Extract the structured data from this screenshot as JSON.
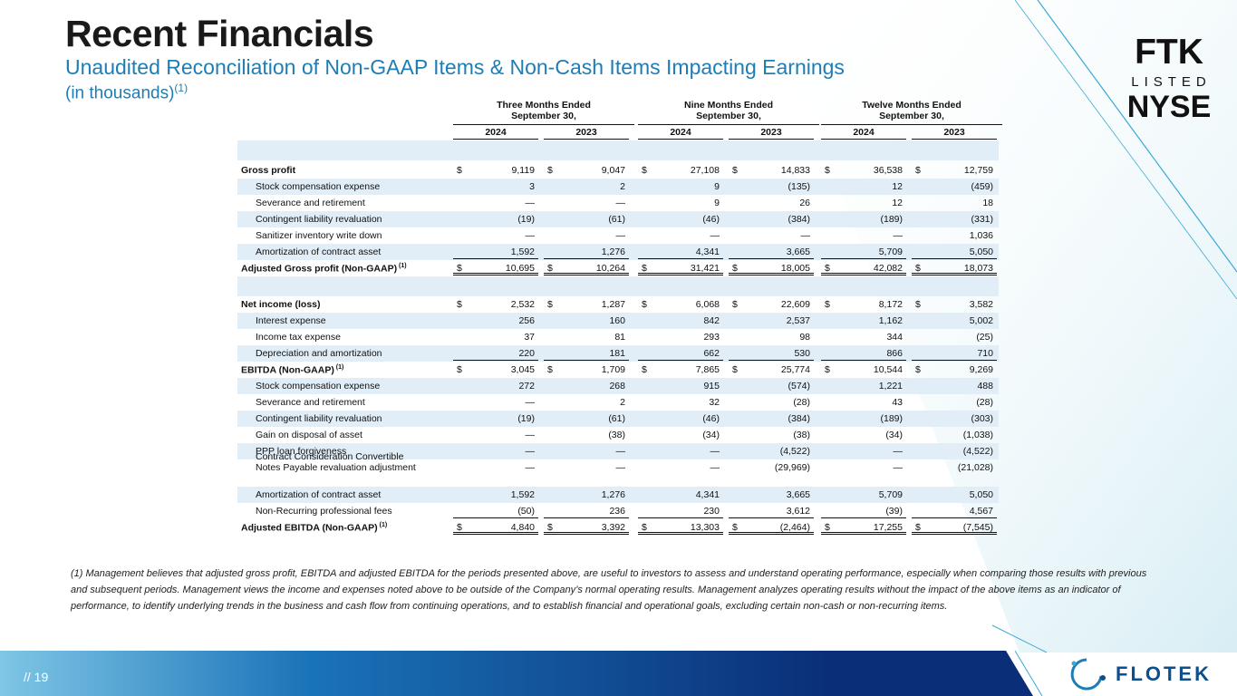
{
  "slide": {
    "title": "Recent Financials",
    "subtitle": "Unaudited Reconciliation of Non-GAAP Items & Non-Cash Items Impacting Earnings",
    "units": "(in thousands)",
    "units_footnote_ref": "(1)",
    "page_number": "// 19"
  },
  "badge": {
    "line1": "FTK",
    "line2": "LISTED",
    "line3": "NYSE"
  },
  "brand": {
    "name": "FLOTEK",
    "icon": "flotek-ring-icon"
  },
  "colors": {
    "title": "#1a1a1a",
    "subtitle": "#1f7db6",
    "row_shade": "#e1eef8",
    "bar_left": "#7fc6e6",
    "bar_right": "#0a2f78"
  },
  "table": {
    "periods": [
      {
        "label": "Three Months Ended September 30,",
        "years": [
          "2024",
          "2023"
        ]
      },
      {
        "label": "Nine Months Ended September 30,",
        "years": [
          "2024",
          "2023"
        ]
      },
      {
        "label": "Twelve Months Ended September 30,",
        "years": [
          "2024",
          "2023"
        ]
      }
    ],
    "rows": [
      {
        "label": "Gross profit",
        "values": [
          "9,119",
          "9,047",
          "27,108",
          "14,833",
          "36,538",
          "12,759"
        ]
      },
      {
        "label": "Stock compensation expense",
        "values": [
          "3",
          "2",
          "9",
          "(135)",
          "12",
          "(459)"
        ]
      },
      {
        "label": "Severance and retirement",
        "values": [
          "—",
          "—",
          "9",
          "26",
          "12",
          "18"
        ]
      },
      {
        "label": "Contingent liability revaluation",
        "values": [
          "(19)",
          "(61)",
          "(46)",
          "(384)",
          "(189)",
          "(331)"
        ]
      },
      {
        "label": "Sanitizer inventory write down",
        "values": [
          "—",
          "—",
          "—",
          "—",
          "—",
          "1,036"
        ]
      },
      {
        "label": "Amortization of contract asset",
        "values": [
          "1,592",
          "1,276",
          "4,341",
          "3,665",
          "5,709",
          "5,050"
        ]
      },
      {
        "label": "Adjusted Gross profit (Non-GAAP)",
        "sup": "(1)",
        "values": [
          "10,695",
          "10,264",
          "31,421",
          "18,005",
          "42,082",
          "18,073"
        ]
      },
      {
        "label": "Net income (loss)",
        "values": [
          "2,532",
          "1,287",
          "6,068",
          "22,609",
          "8,172",
          "3,582"
        ]
      },
      {
        "label": "Interest expense",
        "values": [
          "256",
          "160",
          "842",
          "2,537",
          "1,162",
          "5,002"
        ]
      },
      {
        "label": "Income tax expense",
        "values": [
          "37",
          "81",
          "293",
          "98",
          "344",
          "(25)"
        ]
      },
      {
        "label": "Depreciation and amortization",
        "values": [
          "220",
          "181",
          "662",
          "530",
          "866",
          "710"
        ]
      },
      {
        "label": "EBITDA (Non-GAAP)",
        "sup": "(1)",
        "values": [
          "3,045",
          "1,709",
          "7,865",
          "25,774",
          "10,544",
          "9,269"
        ]
      },
      {
        "label": "Stock compensation expense",
        "values": [
          "272",
          "268",
          "915",
          "(574)",
          "1,221",
          "488"
        ]
      },
      {
        "label": "Severance and retirement",
        "values": [
          "—",
          "2",
          "32",
          "(28)",
          "43",
          "(28)"
        ]
      },
      {
        "label": "Contingent liability revaluation",
        "values": [
          "(19)",
          "(61)",
          "(46)",
          "(384)",
          "(189)",
          "(303)"
        ]
      },
      {
        "label": "Gain on disposal of asset",
        "values": [
          "—",
          "(38)",
          "(34)",
          "(38)",
          "(34)",
          "(1,038)"
        ]
      },
      {
        "label": "PPP loan forgiveness",
        "values": [
          "—",
          "—",
          "—",
          "(4,522)",
          "—",
          "(4,522)"
        ]
      },
      {
        "label": "Contract Consideration Convertible",
        "label2": "Notes Payable revaluation adjustment",
        "values": [
          "—",
          "—",
          "—",
          "(29,969)",
          "—",
          "(21,028)"
        ]
      },
      {
        "label": "Amortization of contract asset",
        "values": [
          "1,592",
          "1,276",
          "4,341",
          "3,665",
          "5,709",
          "5,050"
        ]
      },
      {
        "label": "Non-Recurring professional fees",
        "values": [
          "(50)",
          "236",
          "230",
          "3,612",
          "(39)",
          "4,567"
        ]
      },
      {
        "label": "Adjusted EBITDA (Non-GAAP)",
        "sup": "(1)",
        "values": [
          "4,840",
          "3,392",
          "13,303",
          "(2,464)",
          "17,255",
          "(7,545)"
        ]
      }
    ],
    "currency_symbol": "$"
  },
  "footnote": "(1) Management believes that adjusted gross profit, EBITDA and adjusted EBITDA for the periods presented above, are useful to investors to assess and understand operating performance, especially when comparing those results with previous and subsequent periods.  Management views the income and expenses noted above to be outside of the Company’s normal operating results.  Management analyzes operating results without the impact of the above items as an indicator of performance, to identify underlying trends in the business and cash flow from continuing operations, and to establish financial and operational goals, excluding certain non-cash or non-recurring items."
}
